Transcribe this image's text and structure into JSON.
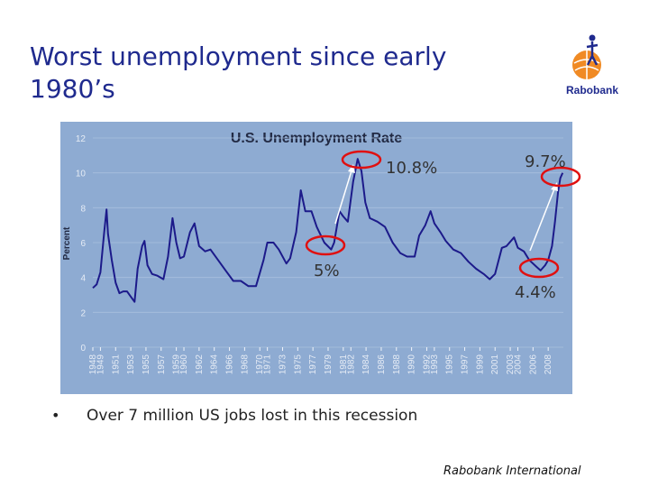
{
  "slide": {
    "title_lines": [
      "Worst unemployment since early",
      "1980’s"
    ],
    "logo": "Rabobank",
    "bullet": "•",
    "bullet_text": "Over 7 million US jobs lost in this recession",
    "footer": "Rabobank International"
  },
  "chart_data": {
    "type": "line",
    "title": "U.S. Unemployment Rate",
    "y_label": "Percent",
    "color": "#1c1a8a",
    "grid": true,
    "x": [
      1948.0,
      1948.5,
      1949.0,
      1949.5,
      1949.8,
      1950.0,
      1950.5,
      1951.0,
      1951.5,
      1952.0,
      1952.5,
      1953.0,
      1953.5,
      1953.9,
      1954.5,
      1954.8,
      1955.2,
      1955.8,
      1956.5,
      1957.3,
      1957.9,
      1958.5,
      1959.0,
      1959.5,
      1960.0,
      1960.8,
      1961.4,
      1962.0,
      1962.8,
      1963.5,
      1964.5,
      1965.5,
      1966.5,
      1967.5,
      1968.5,
      1969.5,
      1970.5,
      1971.0,
      1971.8,
      1972.5,
      1973.5,
      1974.0,
      1974.8,
      1975.4,
      1976.0,
      1976.8,
      1977.5,
      1978.5,
      1979.4,
      1979.8,
      1980.5,
      1981.0,
      1981.6,
      1982.3,
      1982.9,
      1983.4,
      1983.9,
      1984.5,
      1985.5,
      1986.5,
      1987.5,
      1988.5,
      1989.4,
      1990.4,
      1991.0,
      1991.8,
      1992.5,
      1993.0,
      1993.8,
      1994.5,
      1995.5,
      1996.5,
      1997.5,
      1998.5,
      1999.5,
      2000.3,
      2001.0,
      2001.9,
      2002.5,
      2003.5,
      2004.0,
      2004.8,
      2005.5,
      2006.5,
      2007.0,
      2007.6,
      2008.0,
      2008.5,
      2008.9,
      2009.3,
      2009.6,
      2009.9
    ],
    "values": [
      3.4,
      3.6,
      4.3,
      6.6,
      7.9,
      6.5,
      5.0,
      3.7,
      3.1,
      3.2,
      3.2,
      2.9,
      2.6,
      4.5,
      5.8,
      6.1,
      4.7,
      4.2,
      4.1,
      3.9,
      5.2,
      7.4,
      6.0,
      5.1,
      5.2,
      6.6,
      7.1,
      5.8,
      5.5,
      5.6,
      5.0,
      4.4,
      3.8,
      3.8,
      3.5,
      3.5,
      5.0,
      6.0,
      6.0,
      5.6,
      4.8,
      5.1,
      6.6,
      9.0,
      7.8,
      7.8,
      6.9,
      6.0,
      5.6,
      6.0,
      7.8,
      7.5,
      7.2,
      9.5,
      10.8,
      10.1,
      8.3,
      7.4,
      7.2,
      6.9,
      6.0,
      5.4,
      5.2,
      5.2,
      6.4,
      7.0,
      7.8,
      7.1,
      6.6,
      6.1,
      5.6,
      5.4,
      4.9,
      4.5,
      4.2,
      3.9,
      4.2,
      5.7,
      5.8,
      6.3,
      5.7,
      5.5,
      5.0,
      4.6,
      4.4,
      4.7,
      5.0,
      5.8,
      7.2,
      8.9,
      9.7,
      10.0
    ],
    "xlim": [
      1948,
      2010
    ],
    "xticks": [
      1948,
      1949,
      1951,
      1953,
      1955,
      1957,
      1959,
      1960,
      1962,
      1964,
      1966,
      1968,
      1970,
      1971,
      1973,
      1975,
      1977,
      1979,
      1981,
      1982,
      1984,
      1986,
      1988,
      1990,
      1992,
      1993,
      1995,
      1997,
      1999,
      2001,
      2003,
      2004,
      2006,
      2008
    ],
    "ylim": [
      0,
      12
    ],
    "yticks": [
      0,
      2,
      4,
      6,
      8,
      10,
      12
    ],
    "annotations": [
      {
        "text": "10.8%"
      },
      {
        "text": "9.7%"
      },
      {
        "text": "5%"
      },
      {
        "text": "4.4%"
      }
    ]
  }
}
